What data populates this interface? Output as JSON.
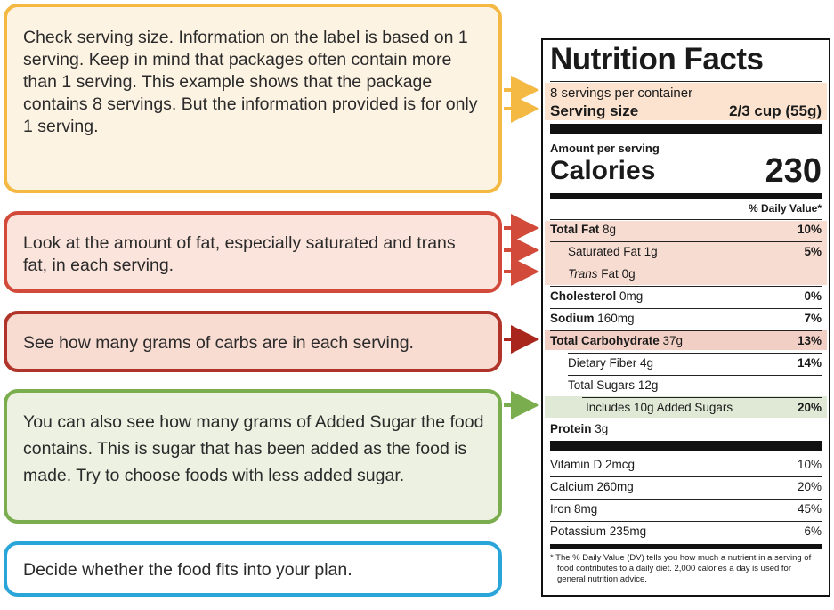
{
  "callouts": {
    "serving": "Check serving size. Information on the label is based on 1 serving. Keep in mind that packages often contain more than 1 serving. This example shows that the package contains 8 servings. But the information provided is for only 1 serving.",
    "fat": "Look at the amount of fat, especially saturated and trans fat, in each serving.",
    "carbs": "See how many grams of carbs are in each serving.",
    "sugar": "You can also see how many grams of Added Sugar the food contains. This is sugar that has been added as the food is made. Try to choose foods with less added sugar.",
    "plan": "Decide whether the food fits into your plan."
  },
  "label": {
    "title": "Nutrition Facts",
    "servings_per_container": "8 servings per container",
    "serving_size_label": "Serving size",
    "serving_size_value": "2/3 cup (55g)",
    "amount_per_serving": "Amount per serving",
    "calories_label": "Calories",
    "calories_value": "230",
    "dv_header": "% Daily Value*",
    "nutrients": [
      {
        "name": "Total Fat",
        "amount": "8g",
        "dv": "10%"
      },
      {
        "name": "Saturated Fat",
        "amount": "1g",
        "dv": "5%"
      },
      {
        "name": "Trans",
        "name_suffix": "Fat",
        "amount": "0g",
        "dv": ""
      },
      {
        "name": "Cholesterol",
        "amount": "0mg",
        "dv": "0%"
      },
      {
        "name": "Sodium",
        "amount": "160mg",
        "dv": "7%"
      },
      {
        "name": "Total Carbohydrate",
        "amount": "37g",
        "dv": "13%"
      },
      {
        "name": "Dietary Fiber",
        "amount": "4g",
        "dv": "14%"
      },
      {
        "name": "Total Sugars",
        "amount": "12g",
        "dv": ""
      },
      {
        "name": "Includes 10g Added Sugars",
        "amount": "",
        "dv": "20%"
      },
      {
        "name": "Protein",
        "amount": "3g",
        "dv": ""
      }
    ],
    "vitamins": [
      {
        "name": "Vitamin D",
        "amount": "2mcg",
        "dv": "10%"
      },
      {
        "name": "Calcium",
        "amount": "260mg",
        "dv": "20%"
      },
      {
        "name": "Iron",
        "amount": "8mg",
        "dv": "45%"
      },
      {
        "name": "Potassium",
        "amount": "235mg",
        "dv": "6%"
      }
    ],
    "footnote": "* The % Daily Value (DV) tells you how much a nutrient in a serving of food contributes to a daily diet. 2,000 calories a day is used for general nutrition advice."
  },
  "colors": {
    "serving_highlight": "#fbe3cf",
    "fat_highlight": "#f7dcd2",
    "carb_highlight": "#f2cfc4",
    "sugar_highlight": "#dfe9d6",
    "yellow": "#f4b942",
    "red": "#d24a3a",
    "darkred": "#a8261c",
    "green": "#79ad4e",
    "blue": "#2aa5d9"
  }
}
